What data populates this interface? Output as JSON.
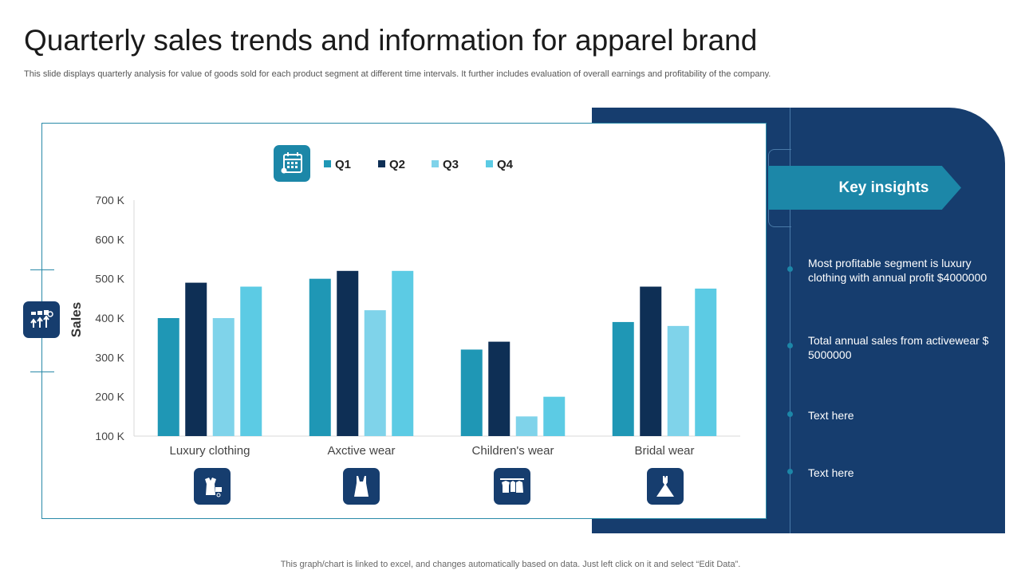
{
  "slide": {
    "title": "Quarterly sales trends and information for apparel brand",
    "subtitle": "This slide displays quarterly analysis for value of goods sold for each product segment at different time intervals. It further includes evaluation of overall earnings and profitability of the company.",
    "footer": "This graph/chart is linked to excel,  and changes automatically based on data. Just left click on it and select “Edit Data”."
  },
  "insights": {
    "heading": "Key insights",
    "items": [
      "Most profitable segment is luxury clothing with annual profit $4000000",
      "Total annual sales from activewear $ 5000000",
      "Text here",
      "Text here"
    ]
  },
  "chart_data": {
    "type": "bar",
    "title": "",
    "xlabel": "",
    "ylabel": "Sales",
    "ylim": [
      100,
      700
    ],
    "y_ticks": [
      "100 K",
      "200 K",
      "300 K",
      "400 K",
      "500 K",
      "600 K",
      "700 K"
    ],
    "y_tick_values": [
      100,
      200,
      300,
      400,
      500,
      600,
      700
    ],
    "categories": [
      "Luxury clothing",
      "Axctive wear",
      "Children's wear",
      "Bridal wear"
    ],
    "series": [
      {
        "name": "Q1",
        "color": "#1f97b5",
        "values": [
          400,
          500,
          320,
          390
        ]
      },
      {
        "name": "Q2",
        "color": "#0e2f55",
        "values": [
          490,
          520,
          340,
          480
        ]
      },
      {
        "name": "Q3",
        "color": "#7fd3ea",
        "values": [
          400,
          420,
          150,
          380
        ]
      },
      {
        "name": "Q4",
        "color": "#5ccbe4",
        "values": [
          480,
          520,
          200,
          475
        ]
      }
    ],
    "grid": false,
    "legend_position": "top"
  },
  "icons": {
    "legend": "calendar-icon",
    "axis": "sales-growth-icon",
    "categories": [
      "luxury-clothing-icon",
      "activewear-icon",
      "childrens-wear-icon",
      "bridal-dress-icon"
    ]
  }
}
